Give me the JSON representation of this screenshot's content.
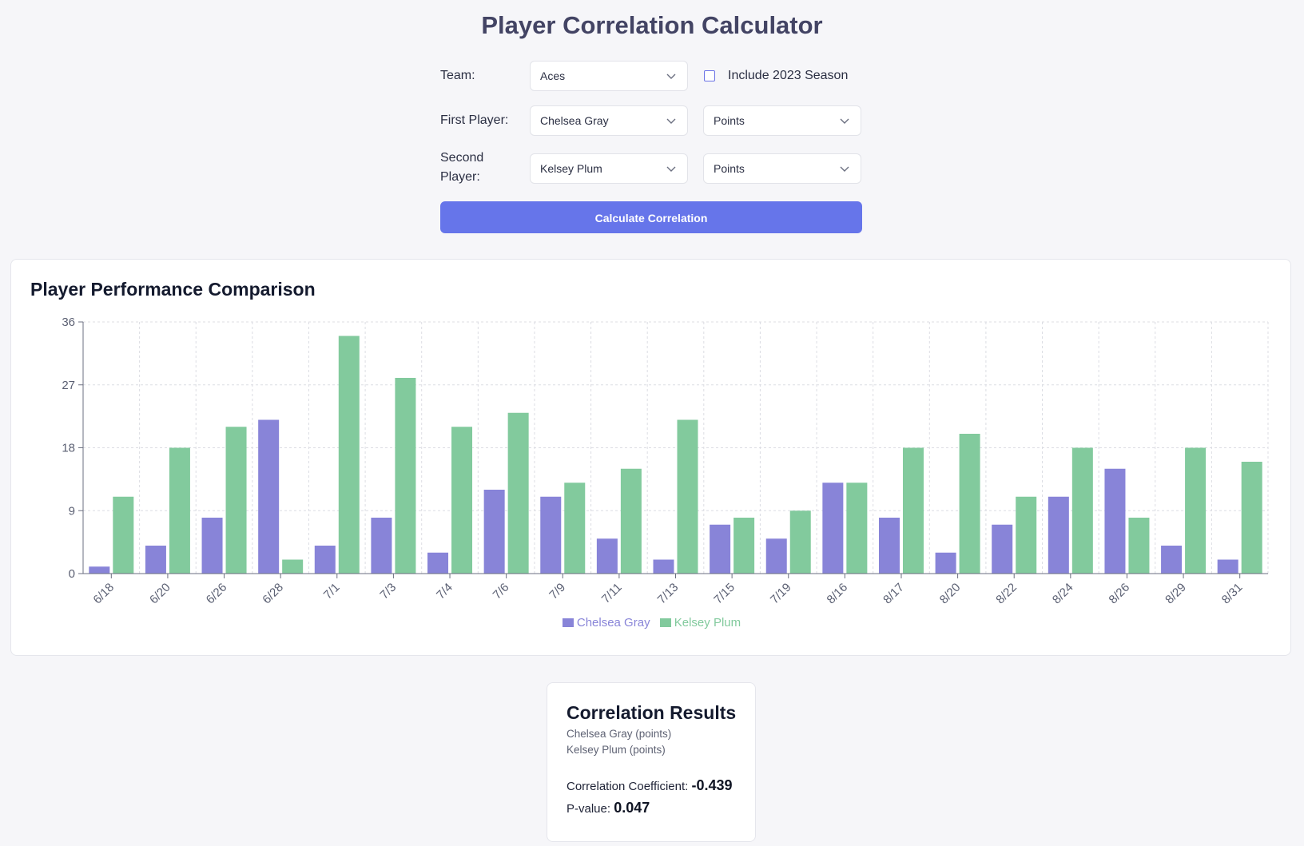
{
  "page": {
    "title": "Player Correlation Calculator"
  },
  "form": {
    "team_label": "Team:",
    "team_value": "Aces",
    "include_label": "Include 2023 Season",
    "include_checked": false,
    "first_label": "First Player:",
    "first_player": "Chelsea Gray",
    "first_stat": "Points",
    "second_label_line1": "Second",
    "second_label_line2": "Player:",
    "second_player": "Kelsey Plum",
    "second_stat": "Points",
    "calc_button": "Calculate Correlation"
  },
  "chart_card": {
    "title": "Player Performance Comparison"
  },
  "chart_data": {
    "type": "bar",
    "title": "Player Performance Comparison",
    "xlabel": "",
    "ylabel": "",
    "ylim": [
      0,
      36
    ],
    "yticks": [
      0,
      9,
      18,
      27,
      36
    ],
    "grid": true,
    "legend": "bottom-center",
    "categories": [
      "6/18",
      "6/20",
      "6/26",
      "6/28",
      "7/1",
      "7/3",
      "7/4",
      "7/6",
      "7/9",
      "7/11",
      "7/13",
      "7/15",
      "7/19",
      "8/16",
      "8/17",
      "8/20",
      "8/22",
      "8/24",
      "8/26",
      "8/29",
      "8/31"
    ],
    "series": [
      {
        "name": "Chelsea Gray",
        "color": "#8884d8",
        "values": [
          1,
          4,
          8,
          22,
          4,
          8,
          3,
          12,
          11,
          5,
          2,
          7,
          5,
          13,
          8,
          3,
          7,
          11,
          15,
          4,
          2
        ]
      },
      {
        "name": "Kelsey Plum",
        "color": "#82ca9d",
        "values": [
          11,
          18,
          21,
          2,
          34,
          28,
          21,
          23,
          13,
          15,
          22,
          8,
          9,
          13,
          18,
          20,
          11,
          18,
          8,
          18,
          16
        ]
      }
    ]
  },
  "results": {
    "title": "Correlation Results",
    "line1": "Chelsea Gray (points)",
    "line2": "Kelsey Plum (points)",
    "coef_label": "Correlation Coefficient:",
    "coef_value": "-0.439",
    "p_label": "P-value:",
    "p_value": "0.047"
  },
  "colors": {
    "accent": "#6675ea",
    "series1": "#8884d8",
    "series2": "#82ca9d"
  }
}
